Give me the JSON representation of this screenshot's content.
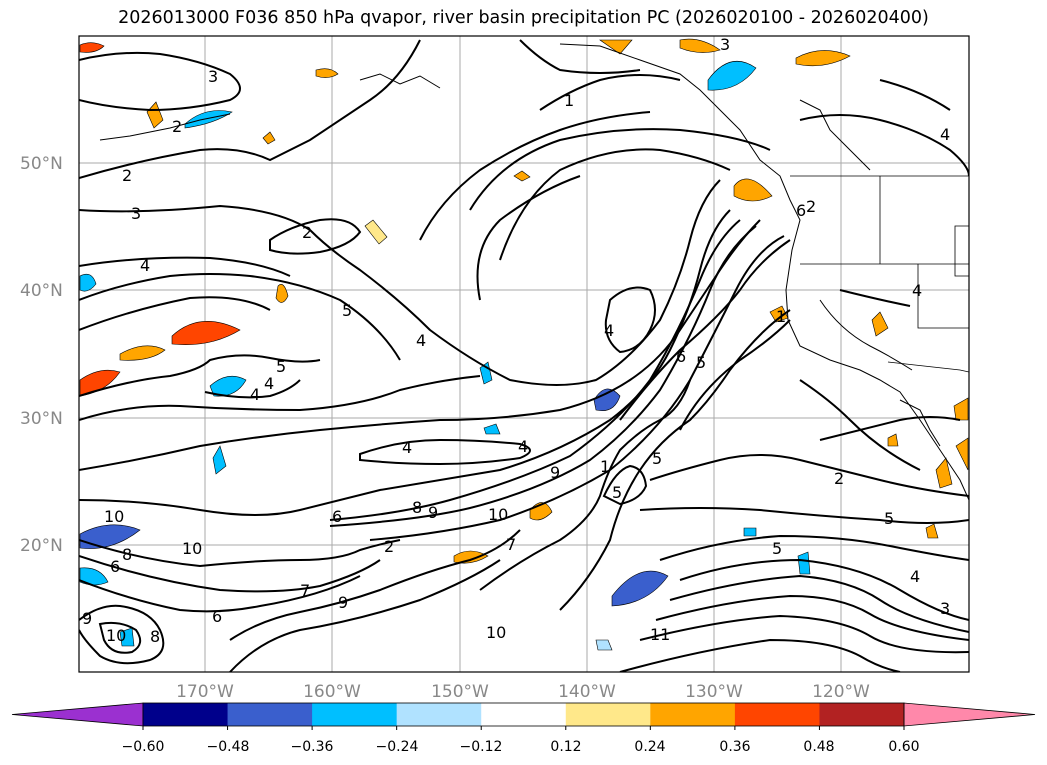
{
  "title": "2026013000 F036 850 hPa qvapor, river basin precipitation PC (2026020100 - 2026020400)",
  "map": {
    "lat_labels": [
      "50°N",
      "40°N",
      "30°N",
      "20°N"
    ],
    "lon_labels": [
      "170°W",
      "160°W",
      "150°W",
      "140°W",
      "130°W",
      "120°W"
    ],
    "extent": {
      "lon_min": -180,
      "lon_max": -110,
      "lat_min": 10,
      "lat_max": 60
    }
  },
  "contour_labels": [
    "2",
    "2",
    "3",
    "4",
    "2",
    "5",
    "4",
    "5",
    "4",
    "4",
    "4",
    "4",
    "4",
    "8",
    "9",
    "10",
    "9",
    "10",
    "7",
    "6",
    "5",
    "6",
    "5",
    "5",
    "3",
    "1",
    "1",
    "2",
    "5",
    "5",
    "4",
    "3",
    "10",
    "8",
    "6",
    "7",
    "9",
    "10",
    "11",
    "9",
    "10",
    "8",
    "6",
    "6",
    "4",
    "3",
    "1",
    "2",
    "2",
    "4"
  ],
  "colorbar": {
    "ticks": [
      "−0.60",
      "−0.48",
      "−0.36",
      "−0.24",
      "−0.12",
      "0.12",
      "0.24",
      "0.36",
      "0.48",
      "0.60"
    ],
    "colors": [
      "#9b30d0",
      "#00008b",
      "#3a5fcd",
      "#00bfff",
      "#b0e2ff",
      "#ffffff",
      "#ffe88a",
      "#ffa500",
      "#ff4500",
      "#b22222",
      "#ff88aa",
      "#ff88aa"
    ]
  }
}
